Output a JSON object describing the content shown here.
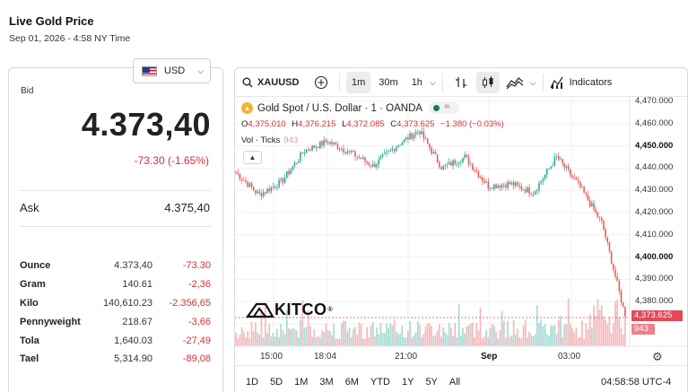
{
  "header": {
    "title": "Live Gold Price",
    "date": "Sep 01, 2026 - 4:58 NY Time"
  },
  "currency": {
    "selected": "USD",
    "flag_icon": "us-flag-icon"
  },
  "quote": {
    "bid_label": "Bid",
    "bid": "4.373,40",
    "change": "-73.30 (-1.65%)",
    "ask_label": "Ask",
    "ask": "4.375,40",
    "change_color": "#d6303a"
  },
  "units": [
    {
      "name": "Ounce",
      "price": "4.373,40",
      "change": "-73.30"
    },
    {
      "name": "Gram",
      "price": "140.61",
      "change": "-2,36"
    },
    {
      "name": "Kilo",
      "price": "140,610.23",
      "change": "-2.356,65"
    },
    {
      "name": "Pennyweight",
      "price": "218.67",
      "change": "-3,66"
    },
    {
      "name": "Tola",
      "price": "1,640.03",
      "change": "-27,49"
    },
    {
      "name": "Tael",
      "price": "5,314.90",
      "change": "-89,08"
    }
  ],
  "toolbar": {
    "symbol": "XAUUSD",
    "timeframes": [
      "1m",
      "30m",
      "1h"
    ],
    "active_timeframe": "1m",
    "indicators_label": "Indicators"
  },
  "chart": {
    "instrument": "Gold Spot / U.S. Dollar · 1 · OANDA",
    "o_label": "O",
    "o": "4,375.010",
    "h_label": "H",
    "h": "4,376.215",
    "l_label": "L",
    "l": "4,372.085",
    "c_label": "C",
    "c": "4,373.625",
    "chg": "−1.380 (−0.03%)",
    "vol_label": "Vol · Ticks",
    "vol": "943",
    "last_price_tag": "4,373.625",
    "last_vol_tag": "943",
    "logo": "KITCO",
    "clock": "04:58:58 UTC-4",
    "ranges": [
      "1D",
      "5D",
      "1M",
      "3M",
      "6M",
      "YTD",
      "1Y",
      "5Y",
      "All"
    ],
    "up_color": "#26a69a",
    "down_color": "#ef5350"
  },
  "chart_data": {
    "type": "line",
    "ylim": [
      4365,
      4472
    ],
    "y_ticks": [
      "4,470.000",
      "4,460.000",
      "4,450.000",
      "4,440.000",
      "4,430.000",
      "4,420.000",
      "4,410.000",
      "4,400.000",
      "4,390.000",
      "4,380.000",
      "4,370.000"
    ],
    "x_ticks": [
      "15:00",
      "18:04",
      "21:00",
      "Sep",
      "03:00"
    ],
    "x": [
      "13:00",
      "14:00",
      "15:00",
      "16:00",
      "17:00",
      "18:00",
      "19:00",
      "20:00",
      "21:00",
      "22:00",
      "23:00",
      "00:00",
      "01:00",
      "02:00",
      "03:00",
      "04:00",
      "04:30",
      "04:58"
    ],
    "series": [
      {
        "values": [
          4438,
          4428,
          4434,
          4448,
          4452,
          4447,
          4441,
          4450,
          4457,
          4440,
          4445,
          4432,
          4433,
          4429,
          4445,
          4432,
          4415,
          4373.6
        ]
      }
    ]
  }
}
